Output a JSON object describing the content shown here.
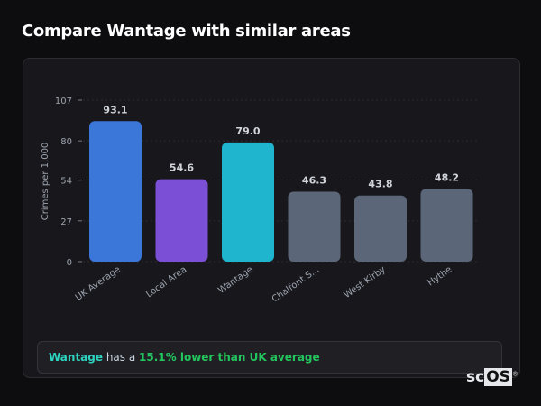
{
  "header": {
    "title": "Compare Wantage with similar areas"
  },
  "chart_data": {
    "type": "bar",
    "title": "",
    "xlabel": "",
    "ylabel": "Crimes per 1,000",
    "ylim": [
      0,
      107
    ],
    "yticks": [
      0,
      27,
      54,
      80,
      107
    ],
    "grid": true,
    "categories": [
      "UK Average",
      "Local Area",
      "Wantage",
      "Chalfont S...",
      "West Kirby",
      "Hythe"
    ],
    "values": [
      93.1,
      54.6,
      79.0,
      46.3,
      43.8,
      48.2
    ],
    "value_labels": [
      "93.1",
      "54.6",
      "79.0",
      "46.3",
      "43.8",
      "48.2"
    ],
    "colors": [
      "#3b76d9",
      "#7b4fd6",
      "#1fb5cf",
      "#5b6678",
      "#5b6678",
      "#5b6678"
    ]
  },
  "summary": {
    "place": "Wantage",
    "middle": " has a ",
    "highlight": "15.1% lower than UK average",
    "place_color": "#2dd4bf",
    "highlight_color": "#22c55e"
  },
  "logo": {
    "text1": "sc",
    "text2": "OS",
    "mark": "®"
  }
}
